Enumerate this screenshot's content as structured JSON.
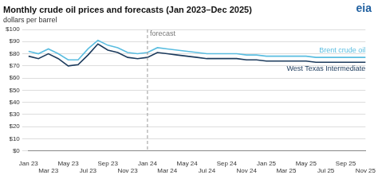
{
  "chart_data": {
    "type": "line",
    "title": "Monthly crude oil prices and forecasts (Jan 2023–Dec 2025)",
    "subtitle": "dollars per barrel",
    "categories": [
      "Jan 23",
      null,
      "Mar 23",
      null,
      "May 23",
      null,
      "Jul 23",
      null,
      "Sep 23",
      null,
      "Nov 23",
      null,
      "Jan 24",
      null,
      "Mar 24",
      null,
      "May 24",
      null,
      "Jul 24",
      null,
      "Sep 24",
      null,
      "Nov 24",
      null,
      "Jan 25",
      null,
      "Mar 25",
      null,
      "May 25",
      null,
      "Jul 25",
      null,
      "Sep 25",
      null,
      "Nov 25"
    ],
    "series": [
      {
        "name": "Brent crude oil",
        "color": "#5abde0",
        "values": [
          82,
          80,
          84,
          80,
          75,
          75,
          84,
          91,
          87,
          85,
          81,
          80,
          81,
          85,
          84,
          83,
          82,
          81,
          80,
          80,
          80,
          80,
          79,
          79,
          78,
          78,
          78,
          78,
          78,
          77,
          77,
          77,
          77,
          77,
          77
        ]
      },
      {
        "name": "West Texas Intermediate",
        "color": "#1b3a5c",
        "values": [
          78,
          76,
          80,
          76,
          70,
          71,
          79,
          88,
          83,
          81,
          77,
          76,
          77,
          81,
          80,
          79,
          78,
          77,
          76,
          76,
          76,
          76,
          75,
          75,
          74,
          74,
          74,
          74,
          74,
          73,
          73,
          73,
          73,
          73,
          73
        ]
      }
    ],
    "ylim": [
      0,
      100
    ],
    "yticks": [
      {
        "value": 0,
        "label": "$0"
      },
      {
        "value": 10,
        "label": "$10"
      },
      {
        "value": 20,
        "label": "$20"
      },
      {
        "value": 30,
        "label": "$30"
      },
      {
        "value": 40,
        "label": "$40"
      },
      {
        "value": 50,
        "label": "$50"
      },
      {
        "value": 60,
        "label": "$60"
      },
      {
        "value": 70,
        "label": "$70"
      },
      {
        "value": 80,
        "label": "$80"
      },
      {
        "value": 90,
        "label": "$90"
      },
      {
        "value": 100,
        "label": "$100"
      }
    ],
    "grid": true,
    "annotations": [
      {
        "text": "forecast",
        "x": "Jan 24",
        "line_style": "dashed"
      },
      {
        "text": "eia"
      }
    ]
  }
}
